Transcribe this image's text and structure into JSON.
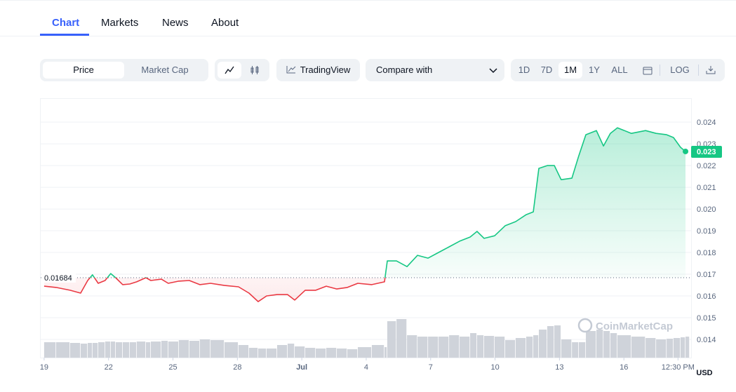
{
  "tabs": [
    "Chart",
    "Markets",
    "News",
    "About"
  ],
  "toolbar": {
    "price": "Price",
    "market_cap": "Market Cap",
    "tradingview": "TradingView",
    "compare": "Compare with",
    "ranges": [
      "1D",
      "7D",
      "1M",
      "1Y",
      "ALL"
    ],
    "selected_range": "1M",
    "log": "LOG"
  },
  "chart_data": {
    "type": "line",
    "x": [
      0,
      0.56,
      1.21,
      1.7,
      2.03,
      2.25,
      2.52,
      2.84,
      3.1,
      3.33,
      3.66,
      3.99,
      4.31,
      4.74,
      4.97,
      5.46,
      5.78,
      6.27,
      6.76,
      7.25,
      7.75,
      8.4,
      9.05,
      9.54,
      9.97,
      10.36,
      10.85,
      11.34,
      11.67,
      12.16,
      12.65,
      13.14,
      13.63,
      14.12,
      14.61,
      15.26,
      15.85,
      15.98,
      16.41,
      16.9,
      17.39,
      17.88,
      18.37,
      18.86,
      19.35,
      19.84,
      20.16,
      20.49,
      20.98,
      21.47,
      21.96,
      22.45,
      22.78,
      23.04,
      23.43,
      23.76,
      24.08,
      24.58,
      24.9,
      25.23,
      25.72,
      26.05,
      26.37,
      26.7,
      27.35,
      28.01,
      28.5,
      28.99,
      29.31,
      29.64,
      29.87
    ],
    "values": [
      0.01645,
      0.01639,
      0.01626,
      0.01613,
      0.01671,
      0.01697,
      0.01658,
      0.01671,
      0.01703,
      0.01684,
      0.01652,
      0.01655,
      0.01665,
      0.01684,
      0.01671,
      0.01677,
      0.01658,
      0.01668,
      0.01671,
      0.01652,
      0.01658,
      0.01648,
      0.01642,
      0.01613,
      0.01574,
      0.016,
      0.01606,
      0.01606,
      0.01581,
      0.01626,
      0.01626,
      0.01645,
      0.01632,
      0.01639,
      0.01658,
      0.01652,
      0.01665,
      0.01761,
      0.01761,
      0.01735,
      0.01787,
      0.01774,
      0.018,
      0.01826,
      0.01852,
      0.01871,
      0.01897,
      0.01865,
      0.01877,
      0.01923,
      0.01942,
      0.01974,
      0.01987,
      0.02187,
      0.022,
      0.022,
      0.02135,
      0.02142,
      0.02245,
      0.02342,
      0.02361,
      0.0229,
      0.02348,
      0.02374,
      0.02348,
      0.02361,
      0.02348,
      0.02342,
      0.02329,
      0.02284,
      0.02265
    ],
    "volume": [
      22,
      22,
      21,
      20,
      21,
      21,
      22,
      23,
      23,
      22,
      22,
      22,
      23,
      22,
      23,
      24,
      23,
      25,
      24,
      26,
      25,
      22,
      18,
      14,
      13,
      13,
      18,
      20,
      16,
      14,
      13,
      14,
      13,
      12,
      15,
      18,
      15,
      52,
      55,
      32,
      30,
      30,
      30,
      32,
      30,
      35,
      32,
      31,
      30,
      25,
      28,
      30,
      32,
      40,
      45,
      46,
      26,
      22,
      22,
      38,
      40,
      38,
      35,
      32,
      30,
      28,
      26,
      27,
      28,
      29,
      30
    ],
    "volume_ylim": [
      0,
      100
    ],
    "up_color": "#16c784",
    "down_color": "#ea3943",
    "volume_color": "#cfd3da",
    "reference": {
      "value": 0.01684,
      "label": "0.01684"
    },
    "current_label": "0.023",
    "xlim": [
      -0.16,
      30.13
    ],
    "xticks": [
      {
        "value": 0,
        "label": "19"
      },
      {
        "value": 3,
        "label": "22"
      },
      {
        "value": 6,
        "label": "25"
      },
      {
        "value": 9,
        "label": "28"
      },
      {
        "value": 12,
        "label": "Jul"
      },
      {
        "value": 15,
        "label": "4"
      },
      {
        "value": 18,
        "label": "7"
      },
      {
        "value": 21,
        "label": "10"
      },
      {
        "value": 24,
        "label": "13"
      },
      {
        "value": 27,
        "label": "16"
      },
      {
        "value": 29.52,
        "label": "12:30 PM"
      }
    ],
    "ylim": [
      0.01316,
      0.02494
    ],
    "yticks": [
      0.014,
      0.015,
      0.016,
      0.017,
      0.018,
      0.019,
      {
        "value": 0.02,
        "label": "0.020"
      },
      0.021,
      0.022,
      0.023,
      0.024
    ],
    "grid": true,
    "watermark": "CoinMarketCap",
    "currency": "USD"
  }
}
